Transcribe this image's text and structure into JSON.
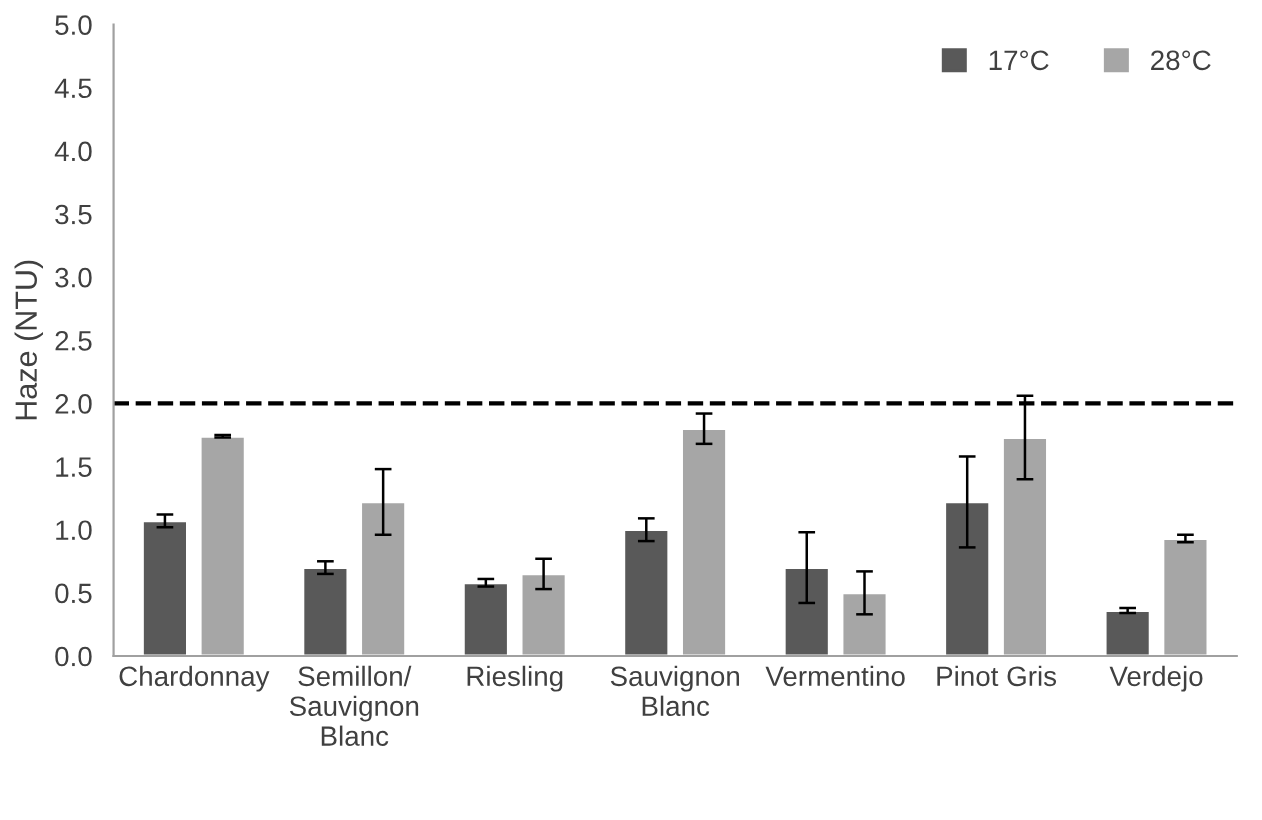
{
  "chart_data": {
    "type": "bar",
    "ylabel": "Haze (NTU)",
    "categories": [
      "Chardonnay",
      "Semillon/\nSauvignon\nBlanc",
      "Riesling",
      "Sauvignon\nBlanc",
      "Vermentino",
      "Pinot Gris",
      "Verdejo"
    ],
    "series": [
      {
        "name": "17°C",
        "color": "#595959",
        "values": [
          1.07,
          0.7,
          0.58,
          1.0,
          0.7,
          1.22,
          0.36
        ],
        "errors": [
          0.05,
          0.05,
          0.03,
          0.09,
          0.28,
          0.36,
          0.02
        ]
      },
      {
        "name": "28°C",
        "color": "#a6a6a6",
        "values": [
          1.74,
          1.22,
          0.65,
          1.8,
          0.5,
          1.73,
          0.93
        ],
        "errors": [
          0.01,
          0.26,
          0.12,
          0.12,
          0.17,
          0.33,
          0.03
        ]
      }
    ],
    "ylim": [
      0,
      5
    ],
    "yticks": [
      {
        "value": 0,
        "label": "0.0"
      },
      {
        "value": 0.5,
        "label": "0.5"
      },
      {
        "value": 1,
        "label": "1.0"
      },
      {
        "value": 1.5,
        "label": "1.5"
      },
      {
        "value": 2,
        "label": "2.0"
      },
      {
        "value": 2.5,
        "label": "2.5"
      },
      {
        "value": 3,
        "label": "3.0"
      },
      {
        "value": 3.5,
        "label": "3.5"
      },
      {
        "value": 4,
        "label": "4.0"
      },
      {
        "value": 4.5,
        "label": "4.5"
      },
      {
        "value": 5,
        "label": "5.0"
      }
    ],
    "ref_lines": [
      {
        "axis": "y",
        "value": 2,
        "color": "#000000",
        "line_style": "dashed"
      }
    ],
    "grid": false,
    "legend": "top right"
  }
}
